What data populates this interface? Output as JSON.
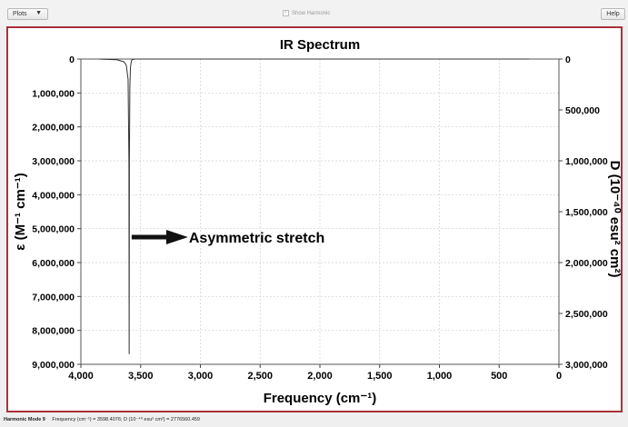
{
  "toolbar": {
    "plots_label": "Plots",
    "show_harmonic_label": "Show Harmonic",
    "show_harmonic_checked": true,
    "help_label": "Help"
  },
  "chart_data": {
    "type": "line",
    "title": "IR Spectrum",
    "xlabel": "Frequency (cm⁻¹)",
    "ylabel": "ε (M⁻¹ cm⁻¹)",
    "y2label": "D (10⁻⁴⁰ esu² cm²)",
    "xlim": [
      4000,
      0
    ],
    "ylim": [
      0,
      9000000
    ],
    "y2lim": [
      0,
      3000000
    ],
    "x_ticks": [
      "4,000",
      "3,500",
      "3,000",
      "2,500",
      "2,000",
      "1,500",
      "1,000",
      "500",
      "0"
    ],
    "x_tick_values": [
      4000,
      3500,
      3000,
      2500,
      2000,
      1500,
      1000,
      500,
      0
    ],
    "y_ticks": [
      "0",
      "1,000,000",
      "2,000,000",
      "3,000,000",
      "4,000,000",
      "5,000,000",
      "6,000,000",
      "7,000,000",
      "8,000,000",
      "9,000,000"
    ],
    "y_tick_values": [
      0,
      1000000,
      2000000,
      3000000,
      4000000,
      5000000,
      6000000,
      7000000,
      8000000,
      9000000
    ],
    "y2_ticks": [
      "0",
      "500,000",
      "1,000,000",
      "1,500,000",
      "2,000,000",
      "2,500,000",
      "3,000,000"
    ],
    "y2_tick_values": [
      0,
      500000,
      1000000,
      1500000,
      2000000,
      2500000,
      3000000
    ],
    "grid": true,
    "series": [
      {
        "color": "#333333",
        "x": [
          3850,
          3700,
          3640,
          3620,
          3605,
          3598,
          3596,
          3594,
          3590,
          3585,
          3578,
          3570,
          3560,
          3540,
          3500,
          2000,
          1000,
          250
        ],
        "y": [
          0,
          20000,
          80000,
          180000,
          600000,
          3000000,
          8700000,
          3000000,
          800000,
          250000,
          60000,
          20000,
          5000,
          0,
          0,
          0,
          0,
          0
        ]
      }
    ],
    "peak": {
      "x": 3596,
      "y": 8700000
    },
    "annotation": {
      "text": "Asymmetric stretch",
      "arrow_from": [
        3575,
        5250000
      ]
    }
  },
  "status": {
    "mode": "Harmonic Mode 9",
    "text": "Frequency (cm⁻¹) = 3598.4076; D (10⁻⁴⁰ esu² cm²) = 2776560.459"
  }
}
